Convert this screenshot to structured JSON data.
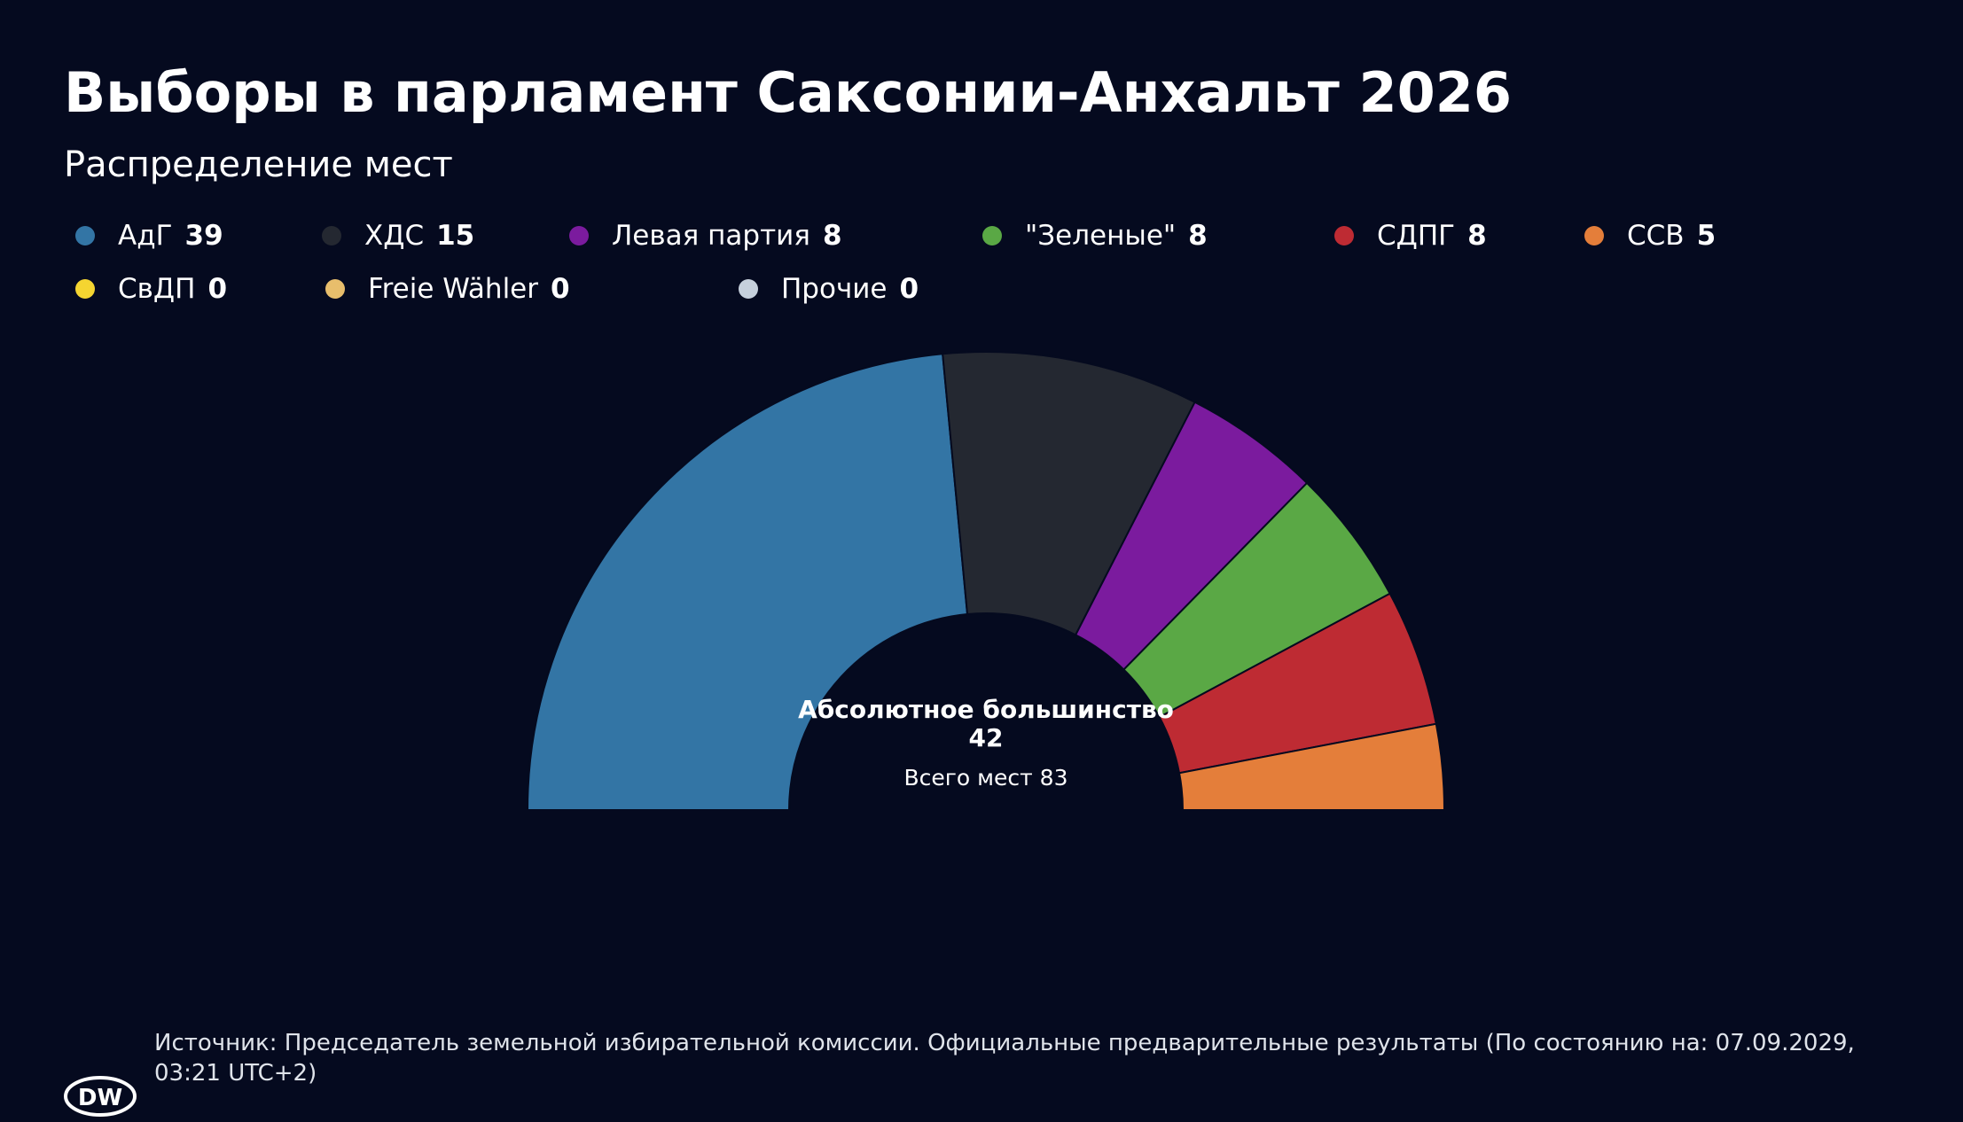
{
  "chart_data": {
    "type": "semicircle",
    "title": "Выборы в парламент Саксонии-Анхальт 2026",
    "subtitle": "Распределение мест",
    "categories": [
      "АдГ",
      "ХДС",
      "Левая партия",
      "\"Зеленые\"",
      "СДПГ",
      "ССВ",
      "СвДП",
      "Freie Wähler",
      "Прочие"
    ],
    "values": [
      39,
      15,
      8,
      8,
      8,
      5,
      0,
      0,
      0
    ],
    "colors": [
      "#3375a5",
      "#242831",
      "#7b1b9e",
      "#5aa845",
      "#be2b33",
      "#e47e3a",
      "#f5d531",
      "#e8be6c",
      "#c6d0dc"
    ],
    "majority": {
      "label": "Абсолютное большинство",
      "value": 42
    },
    "total": {
      "label": "Всего мест",
      "value": 83
    },
    "source": "Источник: Председатель земельной избирательной комиссии. Официальные предварительные результаты (По состоянию на: 07.09.2029, 03:21 UTC+2)"
  }
}
